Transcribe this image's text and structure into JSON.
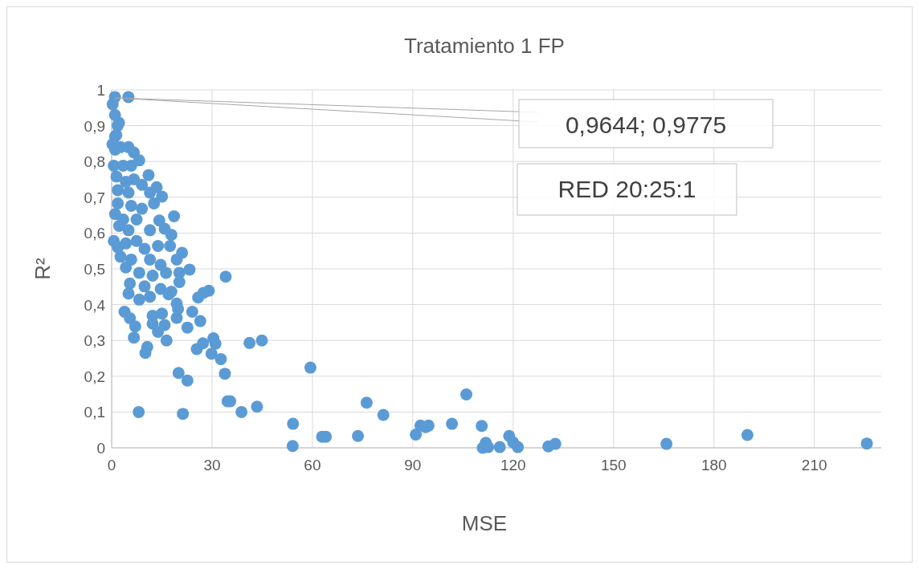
{
  "chart_data": {
    "type": "scatter",
    "title": "Tratamiento 1 FP",
    "xlabel": "MSE",
    "ylabel": "R²",
    "annotations": [
      {
        "text": "0,9644; 0,9775",
        "x": 0.9644,
        "y": 0.9775
      },
      "RED 20:25:1"
    ],
    "xlim": [
      0,
      230
    ],
    "xticks": [
      0,
      30,
      60,
      90,
      120,
      150,
      180,
      210
    ],
    "ylim": [
      0,
      1
    ],
    "yticks": [
      {
        "value": 0,
        "label": "0"
      },
      {
        "value": 0.1,
        "label": "0,1"
      },
      {
        "value": 0.2,
        "label": "0,2"
      },
      {
        "value": 0.3,
        "label": "0,3"
      },
      {
        "value": 0.4,
        "label": "0,4"
      },
      {
        "value": 0.5,
        "label": "0,5"
      },
      {
        "value": 0.6,
        "label": "0,6"
      },
      {
        "value": 0.7,
        "label": "0,7"
      },
      {
        "value": 0.8,
        "label": "0,8"
      },
      {
        "value": 0.9,
        "label": "0,9"
      },
      {
        "value": 1,
        "label": "1"
      }
    ],
    "grid": true,
    "marker": "circle",
    "series": [
      {
        "color": "#5b9bd5",
        "x": [
          0.96,
          5.0,
          0.3,
          1.0,
          1.8,
          1.4,
          2.2,
          1.0,
          0.24,
          1.04,
          2.64,
          5.04,
          6.64,
          8.24,
          0.64,
          3.44,
          5.84,
          11.04,
          1.44,
          4.24,
          6.64,
          9.04,
          13.44,
          15.04,
          1.84,
          5.04,
          11.44,
          12.64,
          1.84,
          5.84,
          9.04,
          18.64,
          1.04,
          3.44,
          7.44,
          14.24,
          15.84,
          17.84,
          2.24,
          5.04,
          11.44,
          0.64,
          1.84,
          4.24,
          7.44,
          9.84,
          13.84,
          17.44,
          21.04,
          19.44,
          2.64,
          5.84,
          11.44,
          14.64,
          4.24,
          8.24,
          12.24,
          16.24,
          20.24,
          23.28,
          20.24,
          34.08,
          5.44,
          9.84,
          14.64,
          17.84,
          5.04,
          8.24,
          11.44,
          17.04,
          25.84,
          27.44,
          29.04,
          19.44,
          19.84,
          19.44,
          24.08,
          26.48,
          22.64,
          3.84,
          5.44,
          7.04,
          12.24,
          15.04,
          12.24,
          15.84,
          13.84,
          16.4,
          6.64,
          10.64,
          10.08,
          25.44,
          27.28,
          30.4,
          31.04,
          29.84,
          32.64,
          33.84,
          41.2,
          44.88,
          20.0,
          22.64,
          34.64,
          35.44,
          38.8,
          43.44,
          8.08,
          21.28,
          54.2,
          54.1,
          59.4,
          62.9,
          64.0,
          73.6,
          76.2,
          81.2,
          90.9,
          92.3,
          94.7,
          93.8,
          101.7,
          106.0,
          110.6,
          110.9,
          111.8,
          112.5,
          116.0,
          118.8,
          120.0,
          121.4,
          130.5,
          132.6,
          165.8,
          190.0,
          225.7
        ],
        "values": [
          0.98,
          0.98,
          0.96,
          0.93,
          0.9,
          0.874,
          0.908,
          0.87,
          0.848,
          0.833,
          0.84,
          0.84,
          0.825,
          0.803,
          0.788,
          0.788,
          0.788,
          0.762,
          0.758,
          0.743,
          0.75,
          0.735,
          0.728,
          0.702,
          0.72,
          0.713,
          0.713,
          0.683,
          0.683,
          0.676,
          0.668,
          0.647,
          0.653,
          0.638,
          0.638,
          0.635,
          0.612,
          0.595,
          0.62,
          0.608,
          0.608,
          0.578,
          0.56,
          0.571,
          0.578,
          0.556,
          0.564,
          0.564,
          0.545,
          0.526,
          0.534,
          0.526,
          0.526,
          0.511,
          0.504,
          0.489,
          0.481,
          0.489,
          0.489,
          0.498,
          0.463,
          0.478,
          0.459,
          0.451,
          0.444,
          0.436,
          0.431,
          0.414,
          0.422,
          0.429,
          0.42,
          0.433,
          0.439,
          0.403,
          0.388,
          0.363,
          0.38,
          0.354,
          0.336,
          0.38,
          0.362,
          0.339,
          0.369,
          0.375,
          0.347,
          0.343,
          0.324,
          0.3,
          0.308,
          0.282,
          0.265,
          0.276,
          0.292,
          0.306,
          0.291,
          0.263,
          0.248,
          0.207,
          0.293,
          0.3,
          0.209,
          0.188,
          0.13,
          0.13,
          0.1,
          0.115,
          0.1,
          0.095,
          0.067,
          0.005,
          0.224,
          0.031,
          0.031,
          0.033,
          0.126,
          0.092,
          0.037,
          0.062,
          0.062,
          0.058,
          0.067,
          0.149,
          0.061,
          0.0,
          0.014,
          0.002,
          0.002,
          0.033,
          0.015,
          0.002,
          0.004,
          0.011,
          0.011,
          0.036,
          0.012
        ]
      }
    ]
  }
}
